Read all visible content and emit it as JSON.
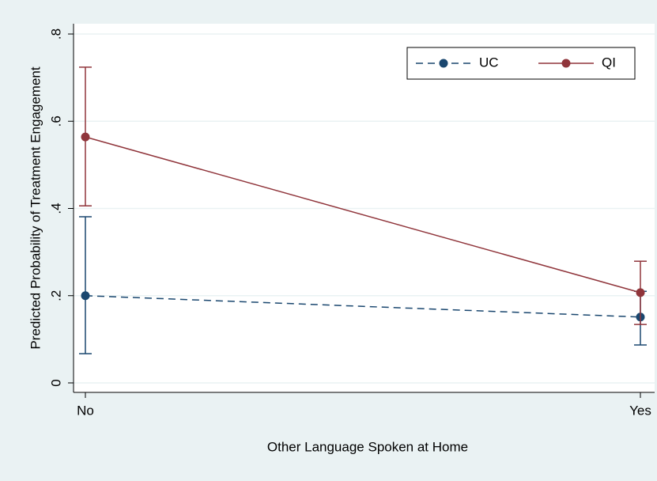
{
  "chart_data": {
    "type": "line",
    "x_label": "Other Language Spoken at Home",
    "y_label": "Predicted Probability of Treatment Engagement",
    "categories": [
      "No",
      "Yes"
    ],
    "series": [
      {
        "name": "UC",
        "color": "#1a476f",
        "dash": true,
        "values": [
          0.2,
          0.151
        ],
        "lower": [
          0.067,
          0.087
        ],
        "upper": [
          0.381,
          0.21
        ]
      },
      {
        "name": "QI",
        "color": "#90353b",
        "dash": false,
        "values": [
          0.564,
          0.207
        ],
        "lower": [
          0.406,
          0.134
        ],
        "upper": [
          0.724,
          0.279
        ]
      }
    ],
    "ylim": [
      0,
      0.8
    ],
    "yticks": [
      0,
      {
        "value": 0.2,
        "label": ".2"
      },
      {
        "value": 0.4,
        "label": ".4"
      },
      {
        "value": 0.6,
        "label": ".6"
      },
      {
        "value": 0.8,
        "label": ".8"
      }
    ],
    "grid": true,
    "legend": "top-right"
  }
}
